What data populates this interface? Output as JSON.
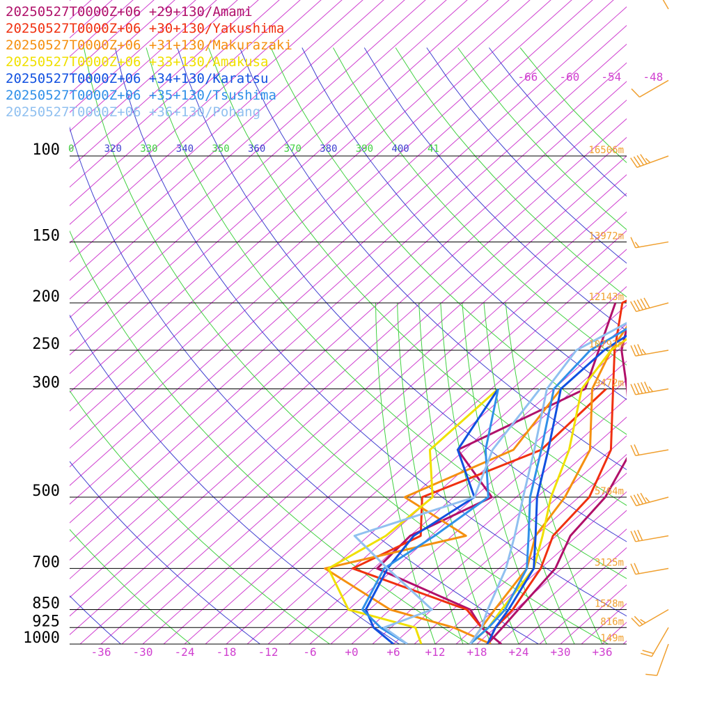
{
  "legend": [
    {
      "label": "20250527T0000Z+06 +29+130/Amami",
      "color": "#b0106a"
    },
    {
      "label": "20250527T0000Z+06 +30+130/Yakushima",
      "color": "#f03010"
    },
    {
      "label": "20250527T0000Z+06 +31+130/Makurazaki",
      "color": "#f59010"
    },
    {
      "label": "20250527T0000Z+06 +33+130/Amakusa",
      "color": "#f0e000"
    },
    {
      "label": "20250527T0000Z+06 +34+130/Karatsu",
      "color": "#1050e0"
    },
    {
      "label": "20250527T0000Z+06 +35+130/Tsushima",
      "color": "#3090e8"
    },
    {
      "label": "20250527T0000Z+06 +36+130/Pohang",
      "color": "#90c0f0"
    }
  ],
  "chart_data": {
    "type": "line",
    "chart_kind": "skew-t",
    "y_scale": "log",
    "pressure_levels": [
      {
        "p": 100,
        "label": "100",
        "height": "16506m"
      },
      {
        "p": 150,
        "label": "150",
        "height": "13972m"
      },
      {
        "p": 200,
        "label": "200",
        "height": "12143m"
      },
      {
        "p": 250,
        "label": "250",
        "height": "10792m"
      },
      {
        "p": 300,
        "label": "300",
        "height": "9472m"
      },
      {
        "p": 500,
        "label": "500",
        "height": "5764m"
      },
      {
        "p": 700,
        "label": "700",
        "height": "3125m"
      },
      {
        "p": 850,
        "label": "850",
        "height": "1528m"
      },
      {
        "p": 925,
        "label": "925",
        "height": "816m"
      },
      {
        "p": 1000,
        "label": "1000",
        "height": "149m"
      }
    ],
    "temp_ticks": [
      "-36",
      "-30",
      "-24",
      "-18",
      "-12",
      "-6",
      "+0",
      "+6",
      "+12",
      "+18",
      "+24",
      "+30",
      "+36"
    ],
    "upper_isotherm_labels": [
      "-66",
      "-60",
      "-54",
      "-48"
    ],
    "theta_labels": [
      {
        "text": "0",
        "color": "#40d040"
      },
      {
        "text": "320",
        "color": "#4040d0"
      },
      {
        "text": "330",
        "color": "#40d040"
      },
      {
        "text": "340",
        "color": "#4040d0"
      },
      {
        "text": "350",
        "color": "#40d040"
      },
      {
        "text": "360",
        "color": "#4040d0"
      },
      {
        "text": "370",
        "color": "#40d040"
      },
      {
        "text": "380",
        "color": "#4040d0"
      },
      {
        "text": "390",
        "color": "#40d040"
      },
      {
        "text": "400",
        "color": "#4040d0"
      },
      {
        "text": "41",
        "color": "#40d040"
      }
    ],
    "series": [
      {
        "name": "20250527T0000Z+06 +29+130/Amami",
        "color": "#b0106a",
        "temperature": [
          [
            1000,
            19.5
          ],
          [
            925,
            19
          ],
          [
            850,
            18.4
          ],
          [
            700,
            17.1
          ],
          [
            600,
            14
          ],
          [
            500,
            12.8
          ],
          [
            400,
            9
          ],
          [
            300,
            -1.5
          ],
          [
            250,
            -8.5
          ],
          [
            200,
            -14.5
          ],
          [
            170,
            -17
          ],
          [
            160,
            -19
          ],
          [
            150,
            -14
          ],
          [
            120,
            -6
          ],
          [
            100,
            -3
          ]
        ],
        "dewpoint": [
          [
            1000,
            21.5
          ],
          [
            925,
            16
          ],
          [
            850,
            11.5
          ],
          [
            700,
            -8.5
          ],
          [
            600,
            -9
          ],
          [
            500,
            -3.5
          ],
          [
            400,
            -16
          ],
          [
            300,
            -7.5
          ],
          [
            200,
            -17
          ]
        ]
      },
      {
        "name": "20250527T0000Z+06 +30+130/Yakushima",
        "color": "#f03010",
        "temperature": [
          [
            1000,
            19.5
          ],
          [
            925,
            18
          ],
          [
            850,
            17.6
          ],
          [
            700,
            15
          ],
          [
            600,
            11.5
          ],
          [
            500,
            10.5
          ],
          [
            400,
            6
          ],
          [
            300,
            -3.5
          ],
          [
            250,
            -9.5
          ],
          [
            200,
            -16
          ],
          [
            160,
            -10
          ],
          [
            150,
            -9
          ],
          [
            120,
            -3
          ],
          [
            100,
            -1
          ]
        ],
        "dewpoint": [
          [
            1000,
            17
          ],
          [
            925,
            16
          ],
          [
            850,
            11
          ],
          [
            700,
            -12
          ],
          [
            600,
            -7.5
          ],
          [
            500,
            -13.5
          ],
          [
            400,
            -4
          ],
          [
            300,
            -4.5
          ]
        ]
      },
      {
        "name": "20250527T0000Z+06 +31+130/Makurazaki",
        "color": "#f59010",
        "temperature": [
          [
            1000,
            17
          ],
          [
            925,
            16
          ],
          [
            850,
            15
          ],
          [
            700,
            13
          ],
          [
            600,
            9
          ],
          [
            500,
            7
          ],
          [
            400,
            3
          ],
          [
            300,
            -6.5
          ],
          [
            250,
            -10
          ],
          [
            200,
            -13
          ],
          [
            150,
            -5
          ],
          [
            120,
            0
          ],
          [
            100,
            1.5
          ]
        ],
        "dewpoint": [
          [
            1000,
            20
          ],
          [
            925,
            12
          ],
          [
            850,
            0
          ],
          [
            700,
            -16
          ],
          [
            600,
            -1
          ],
          [
            500,
            -16
          ],
          [
            400,
            -8
          ],
          [
            300,
            -11
          ]
        ]
      },
      {
        "name": "20250527T0000Z+06 +33+130/Amakusa",
        "color": "#f0e000",
        "temperature": [
          [
            1000,
            17
          ],
          [
            925,
            17
          ],
          [
            850,
            16
          ],
          [
            700,
            14
          ],
          [
            600,
            10
          ],
          [
            500,
            5
          ],
          [
            400,
            0
          ],
          [
            300,
            -8
          ],
          [
            250,
            -10
          ],
          [
            200,
            -8
          ],
          [
            150,
            -2
          ],
          [
            120,
            2
          ],
          [
            100,
            4
          ]
        ],
        "dewpoint": [
          [
            1000,
            10
          ],
          [
            925,
            6.5
          ],
          [
            850,
            -6
          ],
          [
            700,
            -15.5
          ],
          [
            600,
            -12.5
          ],
          [
            500,
            -12
          ],
          [
            400,
            -20
          ],
          [
            300,
            -20
          ]
        ]
      },
      {
        "name": "20250527T0000Z+06 +34+130/Karatsu",
        "color": "#1050e0",
        "temperature": [
          [
            1000,
            19.5
          ],
          [
            925,
            18
          ],
          [
            850,
            17
          ],
          [
            700,
            14
          ],
          [
            600,
            9
          ],
          [
            500,
            3
          ],
          [
            400,
            -3
          ],
          [
            300,
            -11
          ],
          [
            250,
            -11
          ],
          [
            200,
            -8
          ],
          [
            150,
            -3
          ],
          [
            120,
            1
          ],
          [
            100,
            3
          ]
        ],
        "dewpoint": [
          [
            1000,
            6
          ],
          [
            925,
            0.5
          ],
          [
            850,
            -3.5
          ],
          [
            700,
            -7
          ],
          [
            600,
            -8.5
          ],
          [
            500,
            -6
          ],
          [
            400,
            -16
          ],
          [
            300,
            -20
          ]
        ]
      },
      {
        "name": "20250527T0000Z+06 +35+130/Tsushima",
        "color": "#3090e8",
        "temperature": [
          [
            1000,
            17
          ],
          [
            925,
            17
          ],
          [
            850,
            16.5
          ],
          [
            700,
            13
          ],
          [
            600,
            8
          ],
          [
            500,
            2
          ],
          [
            400,
            -4
          ],
          [
            300,
            -12
          ],
          [
            250,
            -13
          ],
          [
            200,
            -9
          ],
          [
            150,
            -3
          ],
          [
            120,
            2
          ],
          [
            100,
            4
          ]
        ],
        "dewpoint": [
          [
            1000,
            8
          ],
          [
            925,
            1.5
          ],
          [
            850,
            -4
          ],
          [
            700,
            -7.5
          ],
          [
            600,
            -5.5
          ],
          [
            500,
            -4
          ],
          [
            400,
            -12
          ],
          [
            300,
            -20
          ]
        ]
      },
      {
        "name": "20250527T0000Z+06 +36+130/Pohang",
        "color": "#90c0f0",
        "temperature": [
          [
            1000,
            17
          ],
          [
            925,
            16
          ],
          [
            850,
            14
          ],
          [
            700,
            10
          ],
          [
            600,
            6
          ],
          [
            500,
            1
          ],
          [
            400,
            -5
          ],
          [
            300,
            -13
          ],
          [
            250,
            -15
          ],
          [
            200,
            -10
          ],
          [
            150,
            -4
          ],
          [
            120,
            2
          ],
          [
            100,
            5
          ]
        ],
        "dewpoint": [
          [
            1000,
            8
          ],
          [
            925,
            2
          ],
          [
            850,
            6
          ],
          [
            700,
            -7
          ],
          [
            600,
            -17
          ],
          [
            500,
            -6
          ],
          [
            400,
            -11
          ],
          [
            300,
            -14
          ]
        ]
      }
    ],
    "wind_barbs_color": "#f0a030",
    "wind_barbs": [
      {
        "p": 1000,
        "dir": 200,
        "speed": 10
      },
      {
        "p": 925,
        "dir": 210,
        "speed": 20
      },
      {
        "p": 850,
        "dir": 240,
        "speed": 25
      },
      {
        "p": 700,
        "dir": 260,
        "speed": 20
      },
      {
        "p": 600,
        "dir": 260,
        "speed": 30
      },
      {
        "p": 500,
        "dir": 255,
        "speed": 45
      },
      {
        "p": 400,
        "dir": 260,
        "speed": 20
      },
      {
        "p": 300,
        "dir": 260,
        "speed": 55
      },
      {
        "p": 250,
        "dir": 260,
        "speed": 35
      },
      {
        "p": 200,
        "dir": 255,
        "speed": 50
      },
      {
        "p": 150,
        "dir": 260,
        "speed": 15
      },
      {
        "p": 100,
        "dir": 250,
        "speed": 45
      },
      {
        "p": 70,
        "dir": 240,
        "speed": 10
      },
      {
        "p": 50,
        "dir": 330,
        "speed": 10
      }
    ]
  }
}
